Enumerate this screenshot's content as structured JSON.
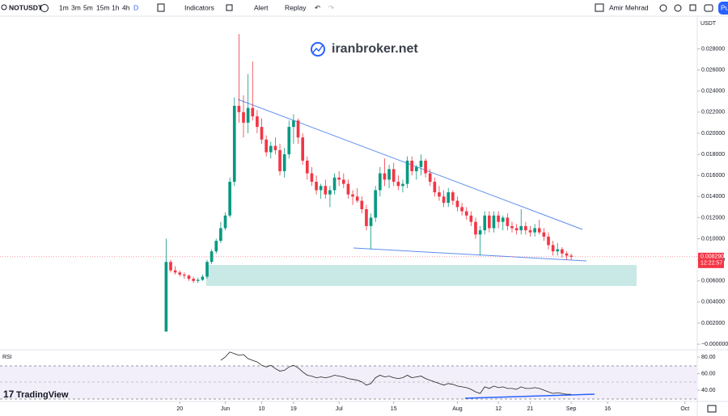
{
  "toolbar": {
    "symbol": "NOTUSDT",
    "intervals": [
      "1m",
      "3m",
      "5m",
      "15m",
      "1h",
      "4h",
      "D"
    ],
    "indicators": "Indicators",
    "alert": "Alert",
    "replay": "Replay",
    "user": "Amir Mehrad",
    "publish": "Pu"
  },
  "watermark": "iranbroker.net",
  "logo": "TradingView",
  "chart_data": [
    {
      "type": "candlestick",
      "currency": "USDT",
      "up_color": "#089981",
      "down_color": "#f23645",
      "open": [
        0.0012,
        0.0078,
        0.007,
        0.0068,
        0.0066,
        0.0065,
        0.0062,
        0.006,
        0.0061,
        0.0064,
        0.0078,
        0.0088,
        0.0098,
        0.011,
        0.0122,
        0.0154,
        0.0226,
        0.022,
        0.021,
        0.0224,
        0.0216,
        0.0206,
        0.0194,
        0.0182,
        0.0188,
        0.0184,
        0.0164,
        0.018,
        0.0206,
        0.0212,
        0.0196,
        0.0174,
        0.0162,
        0.0154,
        0.0146,
        0.015,
        0.0142,
        0.0146,
        0.0158,
        0.0156,
        0.0152,
        0.0142,
        0.014,
        0.0136,
        0.0128,
        0.0112,
        0.012,
        0.0146,
        0.0162,
        0.0156,
        0.0166,
        0.0154,
        0.015,
        0.0152,
        0.0174,
        0.0164,
        0.0168,
        0.0174,
        0.0162,
        0.0154,
        0.0144,
        0.014,
        0.0134,
        0.0144,
        0.0136,
        0.013,
        0.0126,
        0.0122,
        0.0116,
        0.0104,
        0.0108,
        0.0122,
        0.011,
        0.0122,
        0.0116,
        0.012,
        0.0112,
        0.011,
        0.0108,
        0.0112,
        0.0108,
        0.0106,
        0.011,
        0.0106,
        0.0102,
        0.0094,
        0.0088,
        0.009,
        0.0086,
        0.0084
      ],
      "high": [
        0.01,
        0.008,
        0.0074,
        0.007,
        0.0068,
        0.0066,
        0.0064,
        0.0063,
        0.0066,
        0.008,
        0.009,
        0.01,
        0.0116,
        0.0125,
        0.0158,
        0.0234,
        0.0294,
        0.0236,
        0.0256,
        0.0268,
        0.0222,
        0.0214,
        0.0198,
        0.0192,
        0.0196,
        0.019,
        0.0186,
        0.0212,
        0.0218,
        0.0214,
        0.02,
        0.0178,
        0.0168,
        0.016,
        0.0152,
        0.0156,
        0.015,
        0.0162,
        0.0164,
        0.0162,
        0.0156,
        0.0146,
        0.0148,
        0.014,
        0.0132,
        0.0124,
        0.015,
        0.0168,
        0.0176,
        0.017,
        0.0172,
        0.016,
        0.0156,
        0.0178,
        0.0178,
        0.017,
        0.018,
        0.0176,
        0.0166,
        0.0158,
        0.015,
        0.0146,
        0.0148,
        0.0146,
        0.014,
        0.0134,
        0.013,
        0.0126,
        0.012,
        0.0112,
        0.0126,
        0.0126,
        0.0126,
        0.0126,
        0.0122,
        0.0124,
        0.0116,
        0.0114,
        0.0128,
        0.0116,
        0.0112,
        0.0114,
        0.0118,
        0.011,
        0.0106,
        0.0098,
        0.0096,
        0.0092,
        0.0088,
        0.0086
      ],
      "low": [
        0.0012,
        0.0068,
        0.0066,
        0.0064,
        0.0062,
        0.006,
        0.0058,
        0.0058,
        0.006,
        0.0062,
        0.0076,
        0.0086,
        0.0096,
        0.0108,
        0.012,
        0.015,
        0.021,
        0.0196,
        0.02,
        0.0212,
        0.02,
        0.019,
        0.0178,
        0.0176,
        0.018,
        0.016,
        0.0158,
        0.0176,
        0.019,
        0.019,
        0.017,
        0.0156,
        0.015,
        0.0142,
        0.0138,
        0.0138,
        0.013,
        0.0142,
        0.015,
        0.0148,
        0.0138,
        0.0132,
        0.0134,
        0.0124,
        0.0108,
        0.009,
        0.0116,
        0.014,
        0.015,
        0.0148,
        0.015,
        0.0146,
        0.0144,
        0.0148,
        0.016,
        0.0156,
        0.016,
        0.0158,
        0.015,
        0.014,
        0.0136,
        0.013,
        0.013,
        0.0132,
        0.0126,
        0.0122,
        0.0118,
        0.0112,
        0.01,
        0.0084,
        0.0104,
        0.0106,
        0.0106,
        0.011,
        0.0108,
        0.0108,
        0.0106,
        0.0104,
        0.0104,
        0.0104,
        0.0102,
        0.0102,
        0.0104,
        0.0098,
        0.009,
        0.0084,
        0.0084,
        0.0082,
        0.008,
        0.008
      ],
      "close": [
        0.0078,
        0.007,
        0.0068,
        0.0066,
        0.0065,
        0.0062,
        0.006,
        0.0061,
        0.0064,
        0.0078,
        0.0088,
        0.0098,
        0.011,
        0.0122,
        0.0154,
        0.0226,
        0.022,
        0.021,
        0.0224,
        0.0216,
        0.0206,
        0.0194,
        0.0182,
        0.0188,
        0.0184,
        0.0164,
        0.018,
        0.0206,
        0.0212,
        0.0196,
        0.0174,
        0.0162,
        0.0154,
        0.0146,
        0.015,
        0.0142,
        0.0146,
        0.0158,
        0.0156,
        0.0152,
        0.0142,
        0.014,
        0.0136,
        0.0128,
        0.0112,
        0.012,
        0.0146,
        0.0162,
        0.0156,
        0.0166,
        0.0154,
        0.015,
        0.0152,
        0.0174,
        0.0164,
        0.0168,
        0.0174,
        0.0162,
        0.0154,
        0.0144,
        0.014,
        0.0134,
        0.0144,
        0.0136,
        0.013,
        0.0126,
        0.0122,
        0.0116,
        0.0104,
        0.0108,
        0.0122,
        0.011,
        0.0122,
        0.0116,
        0.012,
        0.0112,
        0.011,
        0.0108,
        0.0112,
        0.0108,
        0.0106,
        0.011,
        0.0106,
        0.0102,
        0.0094,
        0.0088,
        0.009,
        0.0086,
        0.0084,
        0.00829
      ],
      "last_price": {
        "value": 0.00829,
        "label": "0.008290"
      },
      "countdown": "12:22:57",
      "ylim": [
        -0.00045,
        0.0311
      ],
      "yticks": [
        {
          "value": 0.028,
          "label": "0.028000"
        },
        {
          "value": 0.026,
          "label": "0.026000"
        },
        {
          "value": 0.024,
          "label": "0.024000"
        },
        {
          "value": 0.022,
          "label": "0.022000"
        },
        {
          "value": 0.02,
          "label": "0.020000"
        },
        {
          "value": 0.018,
          "label": "0.018000"
        },
        {
          "value": 0.016,
          "label": "0.016000"
        },
        {
          "value": 0.014,
          "label": "0.014000"
        },
        {
          "value": 0.012,
          "label": "0.012000"
        },
        {
          "value": 0.01,
          "label": "0.010000"
        },
        {
          "value": 0.008,
          "label": "0.008000"
        },
        {
          "value": 0.006,
          "label": "0.006000"
        },
        {
          "value": 0.004,
          "label": "0.004000"
        },
        {
          "value": 0.002,
          "label": "0.002000"
        },
        {
          "value": 0,
          "label": "−0.000000"
        }
      ],
      "xlim": [
        -36.5,
        116.7
      ],
      "xticks": [
        {
          "value": 3,
          "label": "20"
        },
        {
          "value": 13,
          "label": "Jun"
        },
        {
          "value": 21,
          "label": "10"
        },
        {
          "value": 28,
          "label": "19"
        },
        {
          "value": 38,
          "label": "Jul"
        },
        {
          "value": 50,
          "label": "15"
        },
        {
          "value": 64,
          "label": "Aug"
        },
        {
          "value": 73,
          "label": "12"
        },
        {
          "value": 80,
          "label": "21"
        },
        {
          "value": 89,
          "label": "Sep"
        },
        {
          "value": 97,
          "label": "16"
        },
        {
          "value": 114,
          "label": "Oct"
        }
      ]
    },
    {
      "type": "line",
      "title": "RSI",
      "color": "#222222",
      "values": [
        null,
        null,
        null,
        null,
        null,
        null,
        null,
        null,
        null,
        null,
        null,
        null,
        76,
        80,
        86,
        84,
        82,
        83,
        78,
        76,
        74,
        70,
        68,
        70,
        66,
        63,
        64,
        68,
        70,
        67,
        62,
        58,
        57,
        55,
        56,
        55,
        56,
        58,
        57,
        56,
        54,
        53,
        52,
        50,
        46,
        48,
        55,
        58,
        56,
        57,
        55,
        54,
        55,
        58,
        55,
        56,
        57,
        54,
        52,
        50,
        48,
        46,
        48,
        47,
        45,
        44,
        43,
        41,
        38,
        36,
        44,
        42,
        45,
        43,
        44,
        42,
        42,
        41,
        44,
        42,
        42,
        43,
        42,
        40,
        38,
        36,
        37,
        36,
        35,
        35
      ],
      "ylim": [
        28.3,
        86.8
      ],
      "yticks": [
        {
          "value": 80,
          "label": "80.00"
        },
        {
          "value": 60,
          "label": "60.00"
        },
        {
          "value": 40,
          "label": "40.00"
        }
      ],
      "xlim": [
        -36.5,
        116.7
      ]
    }
  ]
}
